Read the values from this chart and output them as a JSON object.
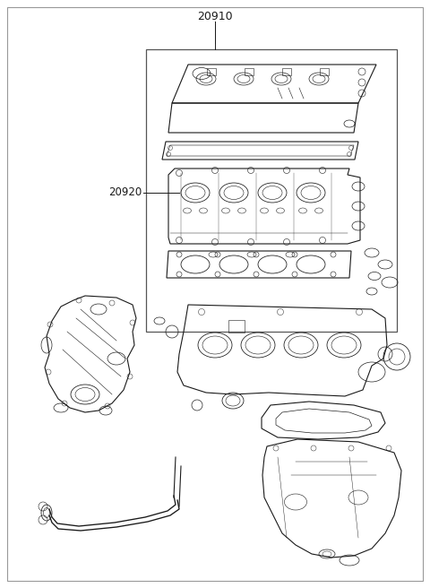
{
  "title": "20910",
  "label_20920": "20920",
  "fig_width": 4.8,
  "fig_height": 6.56,
  "dpi": 100,
  "bg_color": "#ffffff",
  "line_color": "#1a1a1a",
  "text_color": "#1a1a1a",
  "border_color": "#888888"
}
